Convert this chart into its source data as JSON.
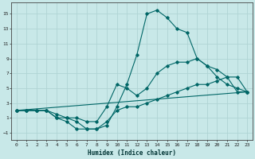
{
  "title": "",
  "xlabel": "Humidex (Indice chaleur)",
  "background_color": "#c8e8e8",
  "grid_color": "#b0d4d4",
  "line_color": "#006666",
  "xlim": [
    -0.5,
    23.5
  ],
  "ylim": [
    -2.0,
    16.5
  ],
  "xticks": [
    0,
    1,
    2,
    3,
    4,
    5,
    6,
    7,
    8,
    9,
    10,
    11,
    12,
    13,
    14,
    15,
    16,
    17,
    18,
    19,
    20,
    21,
    22,
    23
  ],
  "yticks": [
    -1,
    1,
    3,
    5,
    7,
    9,
    11,
    13,
    15
  ],
  "lines": [
    {
      "x": [
        0,
        1,
        2,
        3,
        4,
        5,
        6,
        7,
        8,
        9,
        10,
        11,
        12,
        13,
        14,
        15,
        16,
        17,
        18,
        19,
        20,
        21,
        22,
        23
      ],
      "y": [
        2,
        2,
        2,
        2,
        1,
        0.5,
        -0.5,
        -0.5,
        -0.5,
        0,
        2.5,
        5.5,
        9.5,
        15,
        15.5,
        14.5,
        13,
        12.5,
        9,
        8,
        6.5,
        5.5,
        5,
        4.5
      ],
      "marker": true
    },
    {
      "x": [
        0,
        1,
        2,
        3,
        4,
        5,
        6,
        7,
        8,
        9,
        10,
        11,
        12,
        13,
        14,
        15,
        16,
        17,
        18,
        19,
        20,
        21,
        22,
        23
      ],
      "y": [
        2,
        2,
        2,
        2,
        1.5,
        1,
        1,
        0.5,
        0.5,
        2.5,
        5.5,
        5,
        4,
        5,
        7,
        8,
        8.5,
        8.5,
        9,
        8,
        7.5,
        6.5,
        4.5,
        4.5
      ],
      "marker": true
    },
    {
      "x": [
        0,
        1,
        2,
        3,
        4,
        5,
        6,
        7,
        8,
        9,
        10,
        11,
        12,
        13,
        14,
        15,
        16,
        17,
        18,
        19,
        20,
        21,
        22,
        23
      ],
      "y": [
        2,
        2,
        2,
        2,
        1,
        1,
        0.5,
        -0.5,
        -0.5,
        0.5,
        2,
        2.5,
        2.5,
        3,
        3.5,
        4,
        4.5,
        5,
        5.5,
        5.5,
        6,
        6.5,
        6.5,
        4.5
      ],
      "marker": true
    },
    {
      "x": [
        0,
        23
      ],
      "y": [
        2,
        4.5
      ],
      "marker": false
    }
  ]
}
